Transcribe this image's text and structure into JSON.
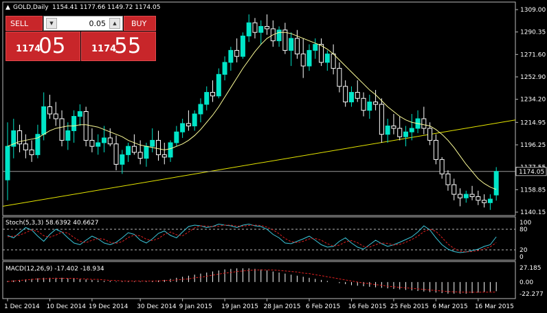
{
  "header": {
    "symbol_label": "GOLD,Daily",
    "ohlc": "1154.41 1177.66 1149.72 1174.05"
  },
  "trade_panel": {
    "sell_label": "SELL",
    "buy_label": "BUY",
    "lot_value": "0.05",
    "bid_prefix": "1174",
    "bid_big": "05",
    "ask_prefix": "1174",
    "ask_big": "55"
  },
  "price_axis": {
    "ticks": [
      "1309.00",
      "1290.35",
      "1271.60",
      "1252.90",
      "1234.20",
      "1214.95",
      "1196.25",
      "1177.55",
      "1158.85",
      "1140.15"
    ],
    "tick_values": [
      1309.0,
      1290.35,
      1271.6,
      1252.9,
      1234.2,
      1214.95,
      1196.25,
      1177.55,
      1158.85,
      1140.15
    ],
    "current_price_label": "1174.05"
  },
  "stoch_pane": {
    "title": "Stoch(5,3,3) 58.6392 40.6627",
    "ticks": [
      "100",
      "80",
      "20",
      "0"
    ],
    "levels": [
      80,
      20
    ]
  },
  "macd_pane": {
    "title": "MACD(12,26,9) -17.402 -18.934",
    "ticks": [
      "27.185",
      "0.00",
      "-22.277"
    ]
  },
  "time_axis": {
    "labels": [
      "1 Dec 2014",
      "10 Dec 2014",
      "19 Dec 2014",
      "30 Dec 2014",
      "9 Jan 2015",
      "19 Jan 2015",
      "28 Jan 2015",
      "6 Feb 2015",
      "16 Feb 2015",
      "25 Feb 2015",
      "6 Mar 2015",
      "16 Mar 2015"
    ]
  },
  "colors": {
    "background": "#000000",
    "bull_candle": "#00e5c8",
    "bear_candle": "#ffffff",
    "ma_line": "#ffff99",
    "trendline": "#e8e800",
    "stoch_main": "#3cc8dc",
    "stoch_signal": "#e02020",
    "macd_hist": "#ffffff",
    "macd_signal": "#e02020",
    "panel_red": "#c8262a"
  },
  "chart_data": {
    "type": "candlestick",
    "title": "GOLD,Daily",
    "ylim": [
      1140.15,
      1309.0
    ],
    "candles": [
      [
        1167,
        1215,
        1150,
        1195
      ],
      [
        1195,
        1218,
        1185,
        1208
      ],
      [
        1208,
        1213,
        1190,
        1197
      ],
      [
        1197,
        1205,
        1185,
        1192
      ],
      [
        1192,
        1200,
        1182,
        1188
      ],
      [
        1188,
        1213,
        1185,
        1205
      ],
      [
        1205,
        1240,
        1200,
        1228
      ],
      [
        1228,
        1238,
        1218,
        1222
      ],
      [
        1222,
        1232,
        1212,
        1218
      ],
      [
        1218,
        1225,
        1195,
        1200
      ],
      [
        1200,
        1215,
        1192,
        1208
      ],
      [
        1208,
        1225,
        1198,
        1220
      ],
      [
        1220,
        1230,
        1212,
        1224
      ],
      [
        1224,
        1228,
        1195,
        1200
      ],
      [
        1200,
        1210,
        1190,
        1195
      ],
      [
        1195,
        1205,
        1188,
        1198
      ],
      [
        1198,
        1212,
        1190,
        1202
      ],
      [
        1202,
        1210,
        1195,
        1197
      ],
      [
        1197,
        1204,
        1175,
        1180
      ],
      [
        1180,
        1192,
        1172,
        1188
      ],
      [
        1188,
        1198,
        1182,
        1195
      ],
      [
        1195,
        1205,
        1188,
        1190
      ],
      [
        1190,
        1200,
        1180,
        1185
      ],
      [
        1185,
        1198,
        1178,
        1195
      ],
      [
        1195,
        1210,
        1190,
        1200
      ],
      [
        1200,
        1208,
        1183,
        1188
      ],
      [
        1188,
        1198,
        1180,
        1186
      ],
      [
        1186,
        1200,
        1182,
        1198
      ],
      [
        1198,
        1212,
        1195,
        1207
      ],
      [
        1207,
        1218,
        1202,
        1214
      ],
      [
        1214,
        1225,
        1208,
        1212
      ],
      [
        1212,
        1225,
        1208,
        1222
      ],
      [
        1222,
        1235,
        1215,
        1230
      ],
      [
        1230,
        1245,
        1225,
        1240
      ],
      [
        1240,
        1250,
        1232,
        1237
      ],
      [
        1237,
        1260,
        1235,
        1255
      ],
      [
        1255,
        1270,
        1250,
        1265
      ],
      [
        1265,
        1278,
        1258,
        1275
      ],
      [
        1275,
        1285,
        1265,
        1270
      ],
      [
        1270,
        1290,
        1268,
        1287
      ],
      [
        1287,
        1305,
        1282,
        1298
      ],
      [
        1298,
        1302,
        1285,
        1290
      ],
      [
        1290,
        1300,
        1280,
        1295
      ],
      [
        1295,
        1305,
        1288,
        1293
      ],
      [
        1293,
        1300,
        1278,
        1283
      ],
      [
        1283,
        1295,
        1278,
        1292
      ],
      [
        1292,
        1298,
        1272,
        1275
      ],
      [
        1275,
        1290,
        1262,
        1285
      ],
      [
        1285,
        1292,
        1268,
        1272
      ],
      [
        1272,
        1285,
        1252,
        1262
      ],
      [
        1262,
        1280,
        1258,
        1275
      ],
      [
        1275,
        1285,
        1268,
        1280
      ],
      [
        1280,
        1285,
        1262,
        1265
      ],
      [
        1265,
        1275,
        1258,
        1272
      ],
      [
        1272,
        1280,
        1255,
        1260
      ],
      [
        1260,
        1265,
        1240,
        1245
      ],
      [
        1245,
        1250,
        1228,
        1232
      ],
      [
        1232,
        1245,
        1228,
        1240
      ],
      [
        1240,
        1250,
        1232,
        1235
      ],
      [
        1235,
        1240,
        1220,
        1225
      ],
      [
        1225,
        1238,
        1218,
        1232
      ],
      [
        1232,
        1242,
        1225,
        1230
      ],
      [
        1230,
        1235,
        1198,
        1205
      ],
      [
        1205,
        1218,
        1198,
        1212
      ],
      [
        1212,
        1222,
        1205,
        1210
      ],
      [
        1210,
        1220,
        1200,
        1203
      ],
      [
        1203,
        1212,
        1195,
        1207
      ],
      [
        1207,
        1222,
        1200,
        1210
      ],
      [
        1210,
        1225,
        1206,
        1218
      ],
      [
        1218,
        1228,
        1205,
        1210
      ],
      [
        1210,
        1215,
        1196,
        1200
      ],
      [
        1200,
        1205,
        1180,
        1184
      ],
      [
        1184,
        1186,
        1168,
        1172
      ],
      [
        1172,
        1175,
        1158,
        1163
      ],
      [
        1163,
        1168,
        1150,
        1155
      ],
      [
        1155,
        1160,
        1145,
        1152
      ],
      [
        1152,
        1158,
        1148,
        1155
      ],
      [
        1155,
        1162,
        1150,
        1153
      ],
      [
        1153,
        1158,
        1146,
        1150
      ],
      [
        1150,
        1155,
        1144,
        1148
      ],
      [
        1148,
        1155,
        1142,
        1151
      ],
      [
        1154.41,
        1177.66,
        1149.72,
        1174.05
      ]
    ],
    "moving_average": [
      1195,
      1197,
      1199,
      1200,
      1201,
      1202,
      1205,
      1208,
      1210,
      1211,
      1212,
      1212,
      1213,
      1213,
      1212,
      1211,
      1209,
      1207,
      1205,
      1203,
      1200,
      1198,
      1196,
      1195,
      1194,
      1193,
      1192,
      1193,
      1195,
      1197,
      1200,
      1204,
      1209,
      1215,
      1221,
      1228,
      1236,
      1244,
      1252,
      1260,
      1267,
      1274,
      1280,
      1285,
      1288,
      1290,
      1290,
      1289,
      1287,
      1285,
      1283,
      1281,
      1279,
      1276,
      1272,
      1267,
      1262,
      1257,
      1252,
      1247,
      1242,
      1238,
      1233,
      1228,
      1224,
      1220,
      1217,
      1215,
      1214,
      1213,
      1212,
      1209,
      1205,
      1200,
      1194,
      1187,
      1180,
      1174,
      1168,
      1164,
      1161,
      1159
    ],
    "trendline": {
      "start": 1145,
      "end": 1217
    },
    "current_price": 1174.05
  },
  "stoch_data": {
    "main": [
      62,
      55,
      70,
      85,
      78,
      60,
      45,
      65,
      80,
      72,
      55,
      40,
      35,
      48,
      60,
      52,
      40,
      35,
      42,
      55,
      70,
      65,
      48,
      40,
      52,
      68,
      75,
      62,
      55,
      72,
      88,
      92,
      90,
      85,
      88,
      95,
      92,
      90,
      85,
      92,
      95,
      90,
      88,
      80,
      65,
      55,
      40,
      38,
      45,
      52,
      60,
      48,
      35,
      28,
      30,
      45,
      55,
      40,
      28,
      22,
      35,
      48,
      38,
      30,
      35,
      42,
      50,
      58,
      72,
      90,
      78,
      55,
      35,
      22,
      15,
      12,
      14,
      18,
      22,
      30,
      35,
      58
    ],
    "signal": [
      58,
      60,
      63,
      70,
      78,
      74,
      61,
      57,
      63,
      72,
      69,
      56,
      45,
      41,
      48,
      53,
      51,
      42,
      39,
      44,
      56,
      63,
      61,
      51,
      47,
      53,
      65,
      72,
      64,
      61,
      72,
      84,
      90,
      89,
      88,
      89,
      92,
      92,
      89,
      89,
      91,
      92,
      91,
      86,
      78,
      67,
      53,
      44,
      41,
      45,
      52,
      53,
      48,
      38,
      31,
      34,
      43,
      47,
      41,
      30,
      28,
      35,
      40,
      39,
      34,
      36,
      42,
      50,
      60,
      73,
      80,
      74,
      56,
      37,
      24,
      16,
      14,
      15,
      18,
      23,
      29,
      41
    ]
  },
  "macd_data": {
    "hist": [
      2,
      3,
      4,
      5,
      6,
      7,
      8,
      8,
      8,
      8,
      7,
      7,
      6,
      5,
      4,
      3,
      2,
      2,
      1,
      1,
      1,
      1,
      1,
      1,
      2,
      3,
      4,
      6,
      8,
      10,
      12,
      14,
      16,
      18,
      20,
      22,
      24,
      25,
      26,
      26,
      26,
      25,
      24,
      22,
      20,
      18,
      16,
      14,
      12,
      10,
      8,
      6,
      4,
      2,
      0,
      -2,
      -4,
      -6,
      -7,
      -8,
      -9,
      -10,
      -11,
      -12,
      -13,
      -14,
      -15,
      -16,
      -17,
      -18,
      -19,
      -20,
      -21,
      -22,
      -22,
      -22,
      -22,
      -21,
      -20,
      -19,
      -18,
      -17.4
    ],
    "signal": [
      1,
      2,
      3,
      4,
      5,
      6,
      6,
      7,
      7,
      7,
      7,
      7,
      6,
      6,
      5,
      5,
      4,
      3,
      3,
      2,
      2,
      2,
      2,
      2,
      2,
      2,
      3,
      3,
      4,
      5,
      6,
      8,
      9,
      11,
      13,
      15,
      17,
      18,
      20,
      21,
      22,
      23,
      23,
      23,
      23,
      22,
      21,
      20,
      19,
      17,
      16,
      14,
      12,
      10,
      8,
      6,
      4,
      2,
      0,
      -2,
      -3,
      -5,
      -6,
      -8,
      -9,
      -10,
      -11,
      -12,
      -13,
      -14,
      -15,
      -16,
      -17,
      -18,
      -18.5,
      -19,
      -19.2,
      -19.3,
      -19.2,
      -19.1,
      -19,
      -18.9
    ]
  }
}
